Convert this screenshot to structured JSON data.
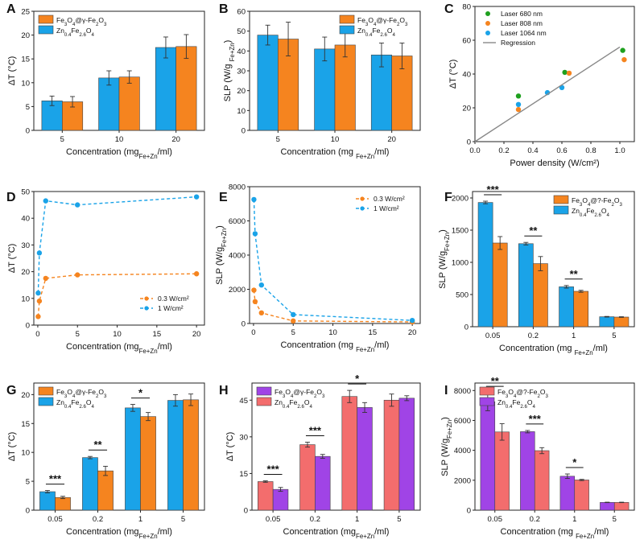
{
  "figure_title": "",
  "colors": {
    "orange": "#f5841f",
    "blue": "#1aa3e8",
    "purple": "#a044e6",
    "salmon": "#f36d6d",
    "green": "#1ea01e",
    "gray": "#888888"
  },
  "chart_data": [
    {
      "panel": "A",
      "type": "bar",
      "categories": [
        "5",
        "10",
        "20"
      ],
      "series": [
        {
          "name": "Zn0.4Fe2.6O4",
          "values": [
            6.2,
            11.0,
            17.4
          ],
          "errors": [
            1.0,
            1.5,
            2.2
          ],
          "color": "blue"
        },
        {
          "name": "Fe3O4@γ-Fe2O3",
          "values": [
            6.0,
            11.2,
            17.6
          ],
          "errors": [
            1.1,
            1.3,
            2.5
          ],
          "color": "orange"
        }
      ],
      "legend": [
        {
          "label": "Fe3O4@γ-Fe2O3",
          "color": "orange"
        },
        {
          "label": "Zn0.4Fe2.6O4",
          "color": "blue"
        }
      ],
      "xlabel": "Concentration (mgFe+Zn/ml)",
      "ylabel": "ΔT (°C)",
      "ylim": [
        0,
        25
      ],
      "yticks": [
        "0",
        "5",
        "10",
        "15",
        "20",
        "25"
      ]
    },
    {
      "panel": "B",
      "type": "bar",
      "categories": [
        "5",
        "10",
        "20"
      ],
      "series": [
        {
          "name": "Zn0.4Fe2.6O4",
          "values": [
            48.0,
            41.0,
            38.0
          ],
          "errors": [
            5.0,
            6.0,
            6.0
          ],
          "color": "blue"
        },
        {
          "name": "Fe3O4@γ-Fe2O3",
          "values": [
            46.0,
            43.0,
            37.5
          ],
          "errors": [
            8.5,
            6.0,
            6.5
          ],
          "color": "orange"
        }
      ],
      "legend": [
        {
          "label": "Fe3O4@γ-Fe2O3",
          "color": "orange"
        },
        {
          "label": "Zn0.4Fe2.6O4",
          "color": "blue"
        }
      ],
      "xlabel": "Concentration (mg Fe+Zn/ml)",
      "ylabel": "SLP (W/g Fe+Zn)",
      "ylim": [
        0,
        60
      ],
      "yticks": [
        "0",
        "10",
        "20",
        "30",
        "40",
        "50",
        "60"
      ]
    },
    {
      "panel": "C",
      "type": "scatter",
      "series": [
        {
          "name": "Laser 680 nm",
          "color": "green",
          "x": [
            0.3,
            0.62,
            1.02
          ],
          "y": [
            27,
            41,
            54
          ]
        },
        {
          "name": "Laser 808 nm",
          "color": "orange",
          "x": [
            0.3,
            0.65,
            1.03
          ],
          "y": [
            19,
            40.5,
            48.5
          ]
        },
        {
          "name": "Laser 1064 nm",
          "color": "blue",
          "x": [
            0.3,
            0.5,
            0.6
          ],
          "y": [
            22,
            29,
            32
          ]
        },
        {
          "name": "Regression",
          "color": "gray",
          "type": "line",
          "x": [
            0.0,
            1.0
          ],
          "y": [
            0,
            56
          ]
        }
      ],
      "xlabel": "Power density (W/cm²)",
      "ylabel": "ΔT (°C)",
      "xlim": [
        0.0,
        1.1
      ],
      "xticks": [
        "0.0",
        "0.2",
        "0.4",
        "0.6",
        "0.8",
        "1.0"
      ],
      "ylim": [
        0,
        80
      ],
      "yticks": [
        "0",
        "20",
        "40",
        "60",
        "80"
      ]
    },
    {
      "panel": "D",
      "type": "line",
      "series": [
        {
          "name": "0.3 W/cm²",
          "color": "orange",
          "x": [
            0.05,
            0.2,
            1,
            5,
            20
          ],
          "y": [
            3.2,
            9,
            17.5,
            18.8,
            19.2
          ]
        },
        {
          "name": "1 W/cm²",
          "color": "blue",
          "x": [
            0.05,
            0.2,
            1,
            5,
            20
          ],
          "y": [
            12,
            27,
            46.5,
            45,
            48
          ]
        }
      ],
      "xlabel": "Concentration (mgFe+Zn/ml)",
      "ylabel": "ΔT (°C)",
      "xlim": [
        -0.5,
        21
      ],
      "xticks": [
        "0",
        "5",
        "10",
        "15",
        "20"
      ],
      "ylim": [
        0,
        50
      ],
      "yticks": [
        "0",
        "10",
        "20",
        "30",
        "40",
        "50"
      ]
    },
    {
      "panel": "E",
      "type": "line",
      "series": [
        {
          "name": "0.3 W/cm²",
          "color": "orange",
          "x": [
            0.05,
            0.2,
            1,
            5,
            20
          ],
          "y": [
            1950,
            1280,
            620,
            150,
            90
          ]
        },
        {
          "name": "1 W/cm²",
          "color": "blue",
          "x": [
            0.05,
            0.2,
            1,
            5,
            20
          ],
          "y": [
            7250,
            5250,
            2250,
            520,
            180
          ]
        }
      ],
      "xlabel": "Concentration (mg Fe+Zn/ml)",
      "ylabel": "SLP (W/gFe+Zn)",
      "xlim": [
        -0.5,
        21
      ],
      "xticks": [
        "0",
        "5",
        "10",
        "15",
        "20"
      ],
      "ylim": [
        0,
        8000
      ],
      "yticks": [
        "0",
        "2000",
        "4000",
        "6000",
        "8000"
      ]
    },
    {
      "panel": "F",
      "type": "bar",
      "categories": [
        "0.05",
        "0.2",
        "1",
        "5"
      ],
      "series": [
        {
          "name": "Zn0.4Fe2.6O4",
          "values": [
            1930,
            1290,
            620,
            155
          ],
          "errors": [
            20,
            20,
            20,
            5
          ],
          "color": "blue"
        },
        {
          "name": "Fe3O4@?-Fe2O3",
          "values": [
            1300,
            980,
            550,
            150
          ],
          "errors": [
            100,
            110,
            15,
            5
          ],
          "color": "orange"
        }
      ],
      "significance": [
        "***",
        "**",
        "**",
        ""
      ],
      "legend": [
        {
          "label": "Fe3O4@?-Fe2O3",
          "color": "orange"
        },
        {
          "label": "Zn0.4Fe2.6O4",
          "color": "blue"
        }
      ],
      "xlabel": "Concentration (mg Fe+Zn/ml)",
      "ylabel": "SLP (W/gFe+Zn)",
      "ylim": [
        0,
        2100
      ],
      "yticks": [
        "0",
        "500",
        "1000",
        "1500",
        "2000"
      ]
    },
    {
      "panel": "G",
      "type": "bar",
      "categories": [
        "0.05",
        "0.2",
        "1",
        "5"
      ],
      "series": [
        {
          "name": "Zn0.4Fe2.6O4",
          "values": [
            3.2,
            9.1,
            17.7,
            19.0
          ],
          "errors": [
            0.2,
            0.2,
            0.6,
            1.0
          ],
          "color": "blue"
        },
        {
          "name": "Fe3O4@γ-Fe2O3",
          "values": [
            2.2,
            6.8,
            16.2,
            19.1
          ],
          "errors": [
            0.2,
            0.8,
            0.7,
            1.0
          ],
          "color": "orange"
        }
      ],
      "significance": [
        "***",
        "**",
        "*",
        ""
      ],
      "legend": [
        {
          "label": "Fe3O4@γ-Fe2O3",
          "color": "orange"
        },
        {
          "label": "Zn0.4Fe2.6O4",
          "color": "blue"
        }
      ],
      "xlabel": "Concentration (mgFe+Zn/ml)",
      "ylabel": "ΔT (°C)",
      "ylim": [
        0,
        22
      ],
      "yticks": [
        "0",
        "5",
        "10",
        "15",
        "20"
      ]
    },
    {
      "panel": "H",
      "type": "bar",
      "categories": [
        "0.05",
        "0.2",
        "1",
        "5"
      ],
      "series": [
        {
          "name": "Zn0.4Fe2.6O4",
          "values": [
            11.7,
            26.8,
            46.5,
            45.0
          ],
          "errors": [
            0.3,
            1.0,
            2.5,
            2.5
          ],
          "color": "salmon"
        },
        {
          "name": "Fe3O4@γ-Fe2O3",
          "values": [
            8.5,
            22.0,
            42.0,
            45.8
          ],
          "errors": [
            0.8,
            0.8,
            2.0,
            1.0
          ],
          "color": "purple"
        }
      ],
      "significance": [
        "***",
        "***",
        "*",
        ""
      ],
      "legend": [
        {
          "label": "Fe3O4@γ-Fe2O3",
          "color": "purple"
        },
        {
          "label": "Zn0.4Fe2.6O4",
          "color": "salmon"
        }
      ],
      "xlabel": "Concentration (mgFe+Zn/ml)",
      "ylabel": "ΔT (°C)",
      "ylim": [
        0,
        52
      ],
      "yticks": [
        "0",
        "15",
        "30",
        "45"
      ]
    },
    {
      "panel": "I",
      "type": "bar",
      "categories": [
        "0.05",
        "0.2",
        "1",
        "5"
      ],
      "series": [
        {
          "name": "Zn0.4Fe2.6O4",
          "values": [
            7250,
            5250,
            2270,
            520
          ],
          "errors": [
            600,
            80,
            150,
            15
          ],
          "color": "purple"
        },
        {
          "name": "Fe3O4@?-Fe2O3",
          "values": [
            5230,
            3980,
            2020,
            520
          ],
          "errors": [
            550,
            200,
            40,
            15
          ],
          "color": "salmon"
        }
      ],
      "significance": [
        "**",
        "***",
        "*",
        ""
      ],
      "legend": [
        {
          "label": "Fe3O4@?-Fe2O3",
          "color": "salmon"
        },
        {
          "label": "Zn0.4Fe2.6O4",
          "color": "purple"
        }
      ],
      "xlabel": "Concentration (mg Fe+Zn/ml)",
      "ylabel": "SLP (W/gFe+Zn)",
      "ylim": [
        0,
        8500
      ],
      "yticks": [
        "0",
        "2000",
        "4000",
        "6000",
        "8000"
      ]
    }
  ]
}
